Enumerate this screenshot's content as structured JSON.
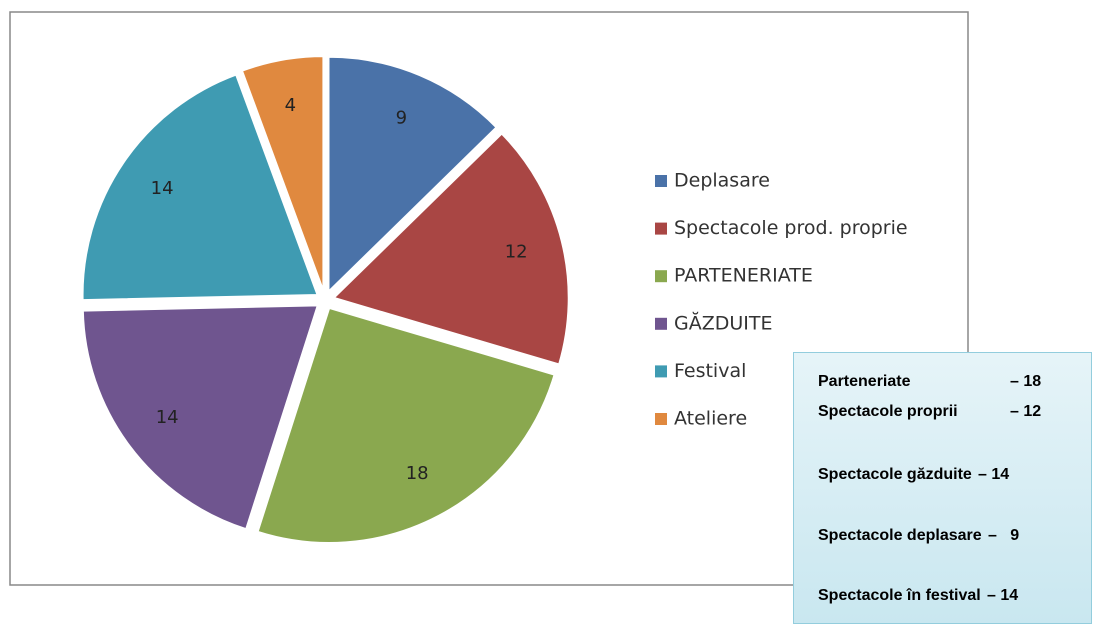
{
  "chart_data": {
    "type": "pie",
    "categories": [
      "Deplasare",
      "Spectacole prod. proprie",
      "PARTENERIATE",
      "GĂZDUITE",
      "Festival",
      "Ateliere"
    ],
    "values": [
      9,
      12,
      18,
      14,
      14,
      4
    ],
    "colors": [
      "#4a72a8",
      "#a94644",
      "#8aa84f",
      "#6f558f",
      "#3f9bb2",
      "#e0893f"
    ],
    "legend": "right"
  },
  "note_box": {
    "lines": [
      {
        "name": "Parteneriate",
        "value": "– 18"
      },
      {
        "name": "Spectacole proprii",
        "value": "– 12"
      },
      {
        "name": "Spectacole găzduite",
        "value": "– 14"
      },
      {
        "name": "Spectacole deplasare",
        "value": "–   9"
      },
      {
        "name": "Spectacole în festival",
        "value": "– 14"
      }
    ]
  }
}
